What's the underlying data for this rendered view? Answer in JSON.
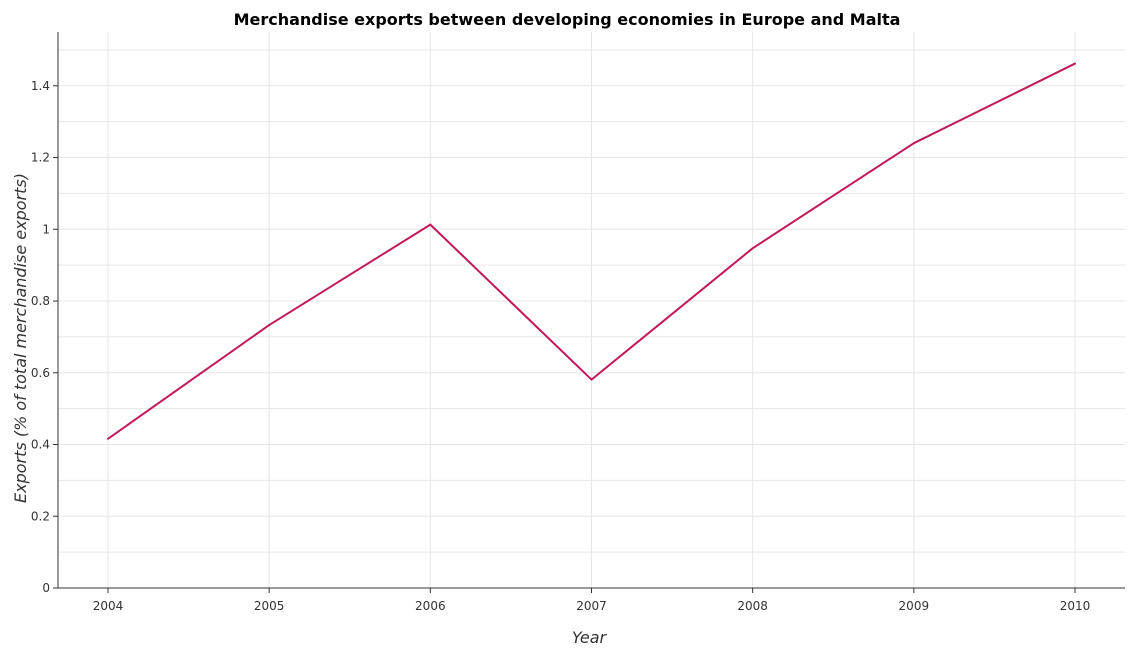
{
  "chart_data": {
    "type": "line",
    "title": "Merchandise exports between developing economies in Europe and Malta",
    "xlabel": "Year",
    "ylabel": "Exports (% of total merchandise exports)",
    "categories": [
      "2004",
      "2005",
      "2006",
      "2007",
      "2008",
      "2009",
      "2010"
    ],
    "values": [
      0.416,
      0.733,
      1.013,
      0.581,
      0.947,
      1.24,
      1.462
    ],
    "ylim": [
      0,
      1.55
    ],
    "yticks": [
      0,
      0.2,
      0.4,
      0.6,
      0.8,
      1.0,
      1.2,
      1.4
    ],
    "ytick_labels": [
      "0",
      "0.2",
      "0.4",
      "0.6",
      "0.8",
      "1",
      "1.2",
      "1.4"
    ],
    "grid": true,
    "line_color": "#c2185b"
  }
}
